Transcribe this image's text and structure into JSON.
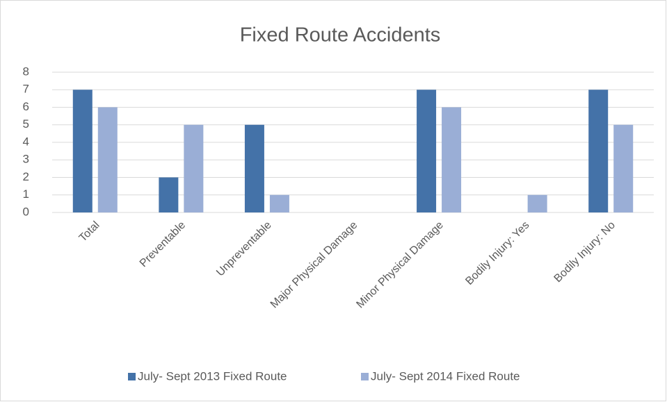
{
  "chart_data": {
    "type": "bar",
    "title": "Fixed Route Accidents",
    "categories": [
      "Total",
      "Preventable",
      "Unpreventable",
      "Major Physical Damage",
      "Minor Physical Damage",
      "Bodily Injury: Yes",
      "Bodily Injury: No"
    ],
    "series": [
      {
        "name": "July- Sept 2013 Fixed Route",
        "color": "#4472a8",
        "values": [
          7,
          2,
          5,
          0,
          7,
          0,
          7
        ]
      },
      {
        "name": "July- Sept 2014 Fixed Route",
        "color": "#9aaed6",
        "values": [
          6,
          5,
          1,
          0,
          6,
          1,
          5
        ]
      }
    ],
    "ylim": [
      0,
      8
    ],
    "yticks": [
      0,
      1,
      2,
      3,
      4,
      5,
      6,
      7,
      8
    ],
    "grid": true,
    "legend": "bottom"
  }
}
